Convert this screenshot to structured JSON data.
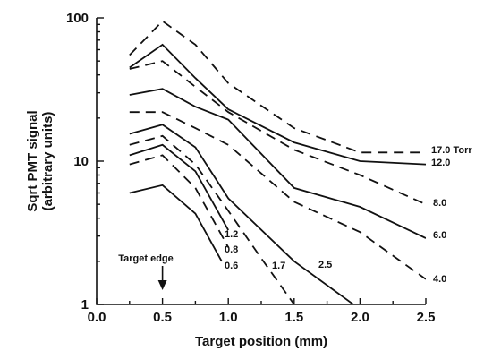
{
  "chart_data": {
    "type": "line",
    "title": "",
    "xlabel": "Target position (mm)",
    "ylabel": [
      "Sqrt PMT signal",
      "(arbitrary units)"
    ],
    "xlim": [
      0,
      2.5
    ],
    "ylim": [
      1,
      100
    ],
    "yscale": "log",
    "xticks": [
      "0.0",
      "0.5",
      "1.0",
      "1.5",
      "2.0",
      "2.5"
    ],
    "yticks": [
      "1",
      "10",
      "100"
    ],
    "grid": false,
    "annotation": {
      "text": "Target edge",
      "x": 0.5
    },
    "series": [
      {
        "name": "17.0 Torr",
        "style": "dashed",
        "x": [
          0.25,
          0.5,
          0.75,
          1.0,
          1.5,
          2.0,
          2.5
        ],
        "y": [
          55,
          95,
          65,
          35,
          17,
          11.5,
          11.5
        ]
      },
      {
        "name": "12.0",
        "style": "solid",
        "x": [
          0.25,
          0.5,
          0.75,
          1.0,
          1.5,
          2.0,
          2.5
        ],
        "y": [
          45,
          65,
          38,
          23,
          13.5,
          10,
          9.5
        ]
      },
      {
        "name": "8.0",
        "style": "dashed",
        "x": [
          0.25,
          0.5,
          0.75,
          1.0,
          1.5,
          2.0,
          2.5
        ],
        "y": [
          44,
          50,
          33,
          22,
          12,
          8,
          5
        ]
      },
      {
        "name": "6.0",
        "style": "solid",
        "x": [
          0.25,
          0.5,
          0.75,
          1.0,
          1.5,
          2.0,
          2.5
        ],
        "y": [
          29,
          32,
          24,
          19.5,
          6.5,
          4.8,
          2.9
        ]
      },
      {
        "name": "4.0",
        "style": "dashed",
        "x": [
          0.25,
          0.5,
          0.75,
          1.0,
          1.5,
          2.0,
          2.5
        ],
        "y": [
          22,
          22,
          17,
          13,
          5.2,
          3.2,
          1.5
        ]
      },
      {
        "name": "2.5",
        "style": "solid",
        "x": [
          0.25,
          0.5,
          0.75,
          1.0,
          1.5,
          1.95
        ],
        "y": [
          15.5,
          18,
          12.5,
          5.5,
          2,
          1
        ]
      },
      {
        "name": "1.7",
        "style": "dashed",
        "x": [
          0.25,
          0.5,
          0.75,
          1.0,
          1.25,
          1.5
        ],
        "y": [
          13,
          15,
          9.5,
          4.5,
          2.1,
          1
        ]
      },
      {
        "name": "1.2",
        "style": "solid",
        "x": [
          0.25,
          0.5,
          0.75,
          1.0
        ],
        "y": [
          11,
          13,
          8.5,
          3.3
        ]
      },
      {
        "name": "0.8",
        "style": "dashed",
        "x": [
          0.25,
          0.5,
          0.75,
          1.0
        ],
        "y": [
          9.5,
          11,
          6.5,
          2.5
        ]
      },
      {
        "name": "0.6",
        "style": "solid",
        "x": [
          0.25,
          0.5,
          0.75,
          0.95
        ],
        "y": [
          6,
          6.8,
          4.3,
          2
        ]
      }
    ]
  }
}
